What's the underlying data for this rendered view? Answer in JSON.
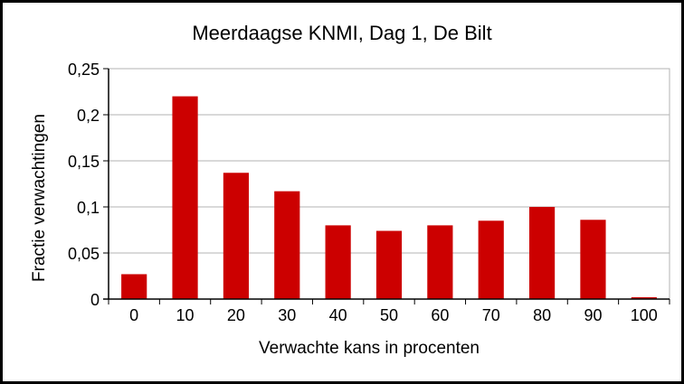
{
  "chart_data": {
    "type": "bar",
    "title": "Meerdaagse KNMI, Dag 1, De Bilt",
    "xlabel": "Verwachte kans in procenten",
    "ylabel": "Fractie verwachtingen",
    "categories": [
      "0",
      "10",
      "20",
      "30",
      "40",
      "50",
      "60",
      "70",
      "80",
      "90",
      "100"
    ],
    "values": [
      0.027,
      0.22,
      0.137,
      0.117,
      0.08,
      0.074,
      0.08,
      0.085,
      0.1,
      0.086,
      0.002
    ],
    "ylim": [
      0,
      0.25
    ],
    "yticks": [
      0,
      0.05,
      0.1,
      0.15,
      0.2,
      0.25
    ],
    "ytick_labels": [
      "0",
      "0,05",
      "0,1",
      "0,15",
      "0,2",
      "0,25"
    ],
    "grid": "horizontal",
    "legend": "none",
    "bar_color": "#cc0000"
  }
}
